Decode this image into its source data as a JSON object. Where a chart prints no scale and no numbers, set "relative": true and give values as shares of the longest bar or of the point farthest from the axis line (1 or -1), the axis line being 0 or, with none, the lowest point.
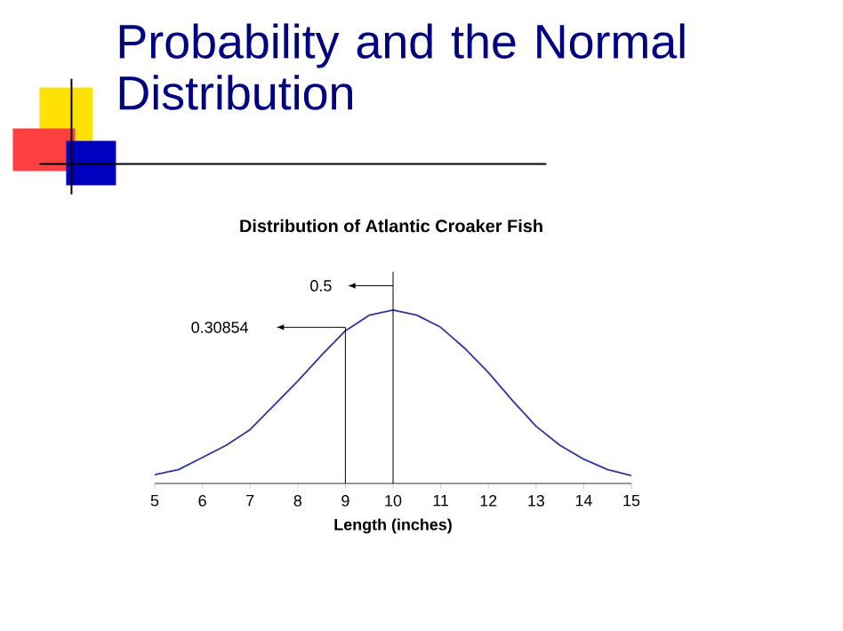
{
  "chart_data": {
    "type": "line",
    "title": "Probability and the Normal Distribution",
    "subtitle": "Distribution of Atlantic Croaker Fish",
    "xlabel": "Length (inches)",
    "relative": true,
    "xlim": [
      5,
      15
    ],
    "xticks": [
      5,
      6,
      7,
      8,
      9,
      10,
      11,
      12,
      13,
      14,
      15
    ],
    "series": [
      {
        "color": "#333399",
        "x": [
          5,
          5.5,
          6,
          6.5,
          7,
          7.5,
          8,
          8.5,
          9,
          9.5,
          10,
          10.5,
          11,
          11.5,
          12,
          12.5,
          13,
          13.5,
          14,
          14.5,
          15
        ],
        "values": [
          0.05,
          0.08,
          0.15,
          0.22,
          0.31,
          0.45,
          0.59,
          0.74,
          0.88,
          0.97,
          1,
          0.97,
          0.9,
          0.78,
          0.64,
          0.48,
          0.33,
          0.22,
          0.14,
          0.08,
          0.045
        ]
      }
    ],
    "ref_lines": [
      {
        "axis": "x",
        "value": 10
      },
      {
        "axis": "x",
        "value": 9
      }
    ],
    "annotations": [
      "0.5",
      "0.30854"
    ]
  }
}
